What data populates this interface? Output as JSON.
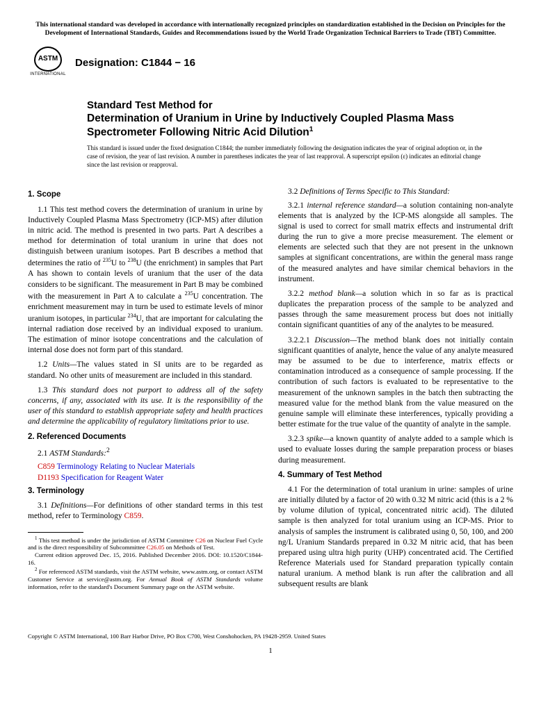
{
  "header_notice": "This international standard was developed in accordance with internationally recognized principles on standardization established in the Decision on Principles for the Development of International Standards, Guides and Recommendations issued by the World Trade Organization Technical Barriers to Trade (TBT) Committee.",
  "logo": {
    "abbr": "ASTM",
    "sub": "INTERNATIONAL"
  },
  "designation": "Designation: C1844 − 16",
  "title_prefix": "Standard Test Method for",
  "title_main": "Determination of Uranium in Urine by Inductively Coupled Plasma Mass Spectrometer Following Nitric Acid Dilution",
  "title_sup": "1",
  "issued_note": "This standard is issued under the fixed designation C1844; the number immediately following the designation indicates the year of original adoption or, in the case of revision, the year of last revision. A number in parentheses indicates the year of last reapproval. A superscript epsilon (ε) indicates an editorial change since the last revision or reapproval.",
  "s1": {
    "head": "1. Scope",
    "p1_a": "1.1 This test method covers the determination of uranium in urine by Inductively Coupled Plasma Mass Spectrometry (ICP-MS) after dilution in nitric acid. The method is presented in two parts. Part A describes a method for determination of total uranium in urine that does not distinguish between uranium isotopes. Part B describes a method that determines the ratio of ",
    "p1_b": "U to ",
    "p1_c": "U (the enrichment) in samples that Part A has shown to contain levels of uranium that the user of the data considers to be significant. The measurement in Part B may be combined with the measurement in Part A to calculate a ",
    "p1_d": "U concentration. The enrichment measurement may in turn be used to estimate levels of minor uranium isotopes, in particular ",
    "p1_e": "U, that are important for calculating the internal radiation dose received by an individual exposed to uranium. The estimation of minor isotope concentrations and the calculation of internal dose does not form part of this standard.",
    "iso235": "235",
    "iso238": "238",
    "iso234": "234",
    "p2_label": "1.2 ",
    "p2_term": "Units—",
    "p2_body": "The values stated in SI units are to be regarded as standard. No other units of measurement are included in this standard.",
    "p3_label": "1.3 ",
    "p3_body": "This standard does not purport to address all of the safety concerns, if any, associated with its use. It is the responsibility of the user of this standard to establish appropriate safety and health practices and determine the applicability of regulatory limitations prior to use."
  },
  "s2": {
    "head": "2. Referenced Documents",
    "p1_label": "2.1 ",
    "p1_term": "ASTM Standards:",
    "p1_sup": "2",
    "r1_code": "C859",
    "r1_title": " Terminology Relating to Nuclear Materials",
    "r2_code": "D1193",
    "r2_title": " Specification for Reagent Water"
  },
  "s3": {
    "head": "3. Terminology",
    "p1_label": "3.1 ",
    "p1_term": "Definitions—",
    "p1_body": "For definitions of other standard terms in this test method, refer to Terminology ",
    "p1_ref": "C859",
    "p1_end": ".",
    "p2_label": "3.2 ",
    "p2_term": "Definitions of Terms Specific to This Standard:",
    "t1_num": "3.2.1 ",
    "t1_term": "internal reference standard—",
    "t1_body": "a solution containing non-analyte elements that is analyzed by the ICP-MS alongside all samples. The signal is used to correct for small matrix effects and instrumental drift during the run to give a more precise measurement. The element or elements are selected such that they are not present in the unknown samples at significant concentrations, are within the general mass range of the measured analytes and have similar chemical behaviors in the instrument.",
    "t2_num": "3.2.2 ",
    "t2_term": "method blank—",
    "t2_body": "a solution which in so far as is practical duplicates the preparation process of the sample to be analyzed and passes through the same measurement process but does not initially contain significant quantities of any of the analytes to be measured.",
    "t2d_num": "3.2.2.1 ",
    "t2d_term": "Discussion—",
    "t2d_body": "The method blank does not initially contain significant quantities of analyte, hence the value of any analyte measured may be assumed to be due to interference, matrix effects or contamination introduced as a consequence of sample processing. If the contribution of such factors is evaluated to be representative to the measurement of the unknown samples in the batch then subtracting the measured value for the method blank from the value measured on the genuine sample will eliminate these interferences, typically providing a better estimate for the true value of the quantity of analyte in the sample.",
    "t3_num": "3.2.3 ",
    "t3_term": "spike—",
    "t3_body": "a known quantity of analyte added to a sample which is used to evaluate losses during the sample preparation process or biases during measurement."
  },
  "s4": {
    "head": "4. Summary of Test Method",
    "p1": "4.1 For the determination of total uranium in urine: samples of urine are initially diluted by a factor of 20 with 0.32 M nitric acid (this is a 2 % by volume dilution of typical, concentrated nitric acid). The diluted sample is then analyzed for total uranium using an ICP-MS. Prior to analysis of samples the instrument is calibrated using 0, 50, 100, and 200 ng/L Uranium Standards prepared in 0.32 M nitric acid, that has been prepared using ultra high purity (UHP) concentrated acid. The Certified Reference Materials used for Standard preparation typically contain natural uranium. A method blank is run after the calibration and all subsequent results are blank"
  },
  "footnotes": {
    "f1_a": " This test method is under the jurisdiction of ASTM Committee ",
    "f1_ref1": "C26",
    "f1_b": " on Nuclear Fuel Cycle and is the direct responsibility of Subcommittee ",
    "f1_ref2": "C26.05",
    "f1_c": " on Methods of Test.",
    "f1_d": "Current edition approved Dec. 15, 2016. Published December 2016. DOI: 10.1520/C1844-16.",
    "f2_a": " For referenced ASTM standards, visit the ASTM website, www.astm.org, or contact ASTM Customer Service at service@astm.org. For ",
    "f2_i": "Annual Book of ASTM Standards",
    "f2_b": " volume information, refer to the standard's Document Summary page on the ASTM website."
  },
  "copyright": "Copyright © ASTM International, 100 Barr Harbor Drive, PO Box C700, West Conshohocken, PA 19428-2959. United States",
  "page_num": "1"
}
